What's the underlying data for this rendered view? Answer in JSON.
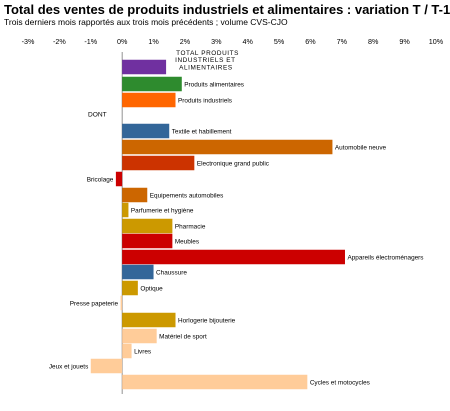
{
  "chart_data": {
    "type": "bar",
    "orientation": "horizontal",
    "title": "Total des ventes de produits industriels et alimentaires : variation T / T-1",
    "subtitle": "Trois derniers mois rapportés aux trois mois précédents ; volume CVS-CJO",
    "xlim": [
      -3,
      10
    ],
    "x_ticks": [
      "-3%",
      "-2%",
      "-1%",
      "0%",
      "1%",
      "2%",
      "3%",
      "4%",
      "5%",
      "6%",
      "7%",
      "8%",
      "9%",
      "10%"
    ],
    "section_label": "DONT",
    "grid": false,
    "categories": [
      {
        "label": "TOTAL PRODUITS INDUSTRIELS ET ALIMENTAIRES",
        "value": 1.4,
        "color": "#7030a0"
      },
      {
        "label": "Produits alimentaires",
        "value": 1.9,
        "color": "#2e8b2e"
      },
      {
        "label": "Produits industriels",
        "value": 1.7,
        "color": "#ff6600"
      },
      {
        "label": "Textile et habillement",
        "value": 1.5,
        "color": "#336699"
      },
      {
        "label": "Automobile neuve",
        "value": 6.7,
        "color": "#cc6600"
      },
      {
        "label": "Electronique grand public",
        "value": 2.3,
        "color": "#cc3300"
      },
      {
        "label": "Bricolage",
        "value": -0.2,
        "color": "#cc0000"
      },
      {
        "label": "Equipements automobiles",
        "value": 0.8,
        "color": "#cc6600"
      },
      {
        "label": "Parfumerie et hygiène",
        "value": 0.2,
        "color": "#cc9900"
      },
      {
        "label": "Pharmacie",
        "value": 1.6,
        "color": "#cc9900"
      },
      {
        "label": "Meubles",
        "value": 1.6,
        "color": "#cc0000"
      },
      {
        "label": "Appareils électroménagers",
        "value": 7.1,
        "color": "#cc0000"
      },
      {
        "label": "Chaussure",
        "value": 1.0,
        "color": "#336699"
      },
      {
        "label": "Optique",
        "value": 0.5,
        "color": "#cc9900"
      },
      {
        "label": "Presse papeterie",
        "value": -0.05,
        "color": "#ffcc99"
      },
      {
        "label": "Horlogerie bijouterie",
        "value": 1.7,
        "color": "#cc9900"
      },
      {
        "label": "Matériel de sport",
        "value": 1.1,
        "color": "#ffcc99"
      },
      {
        "label": "Livres",
        "value": 0.3,
        "color": "#ffcc99"
      },
      {
        "label": "Jeux et jouets",
        "value": -1.0,
        "color": "#ffcc99"
      },
      {
        "label": "Cycles et motocycles",
        "value": 5.9,
        "color": "#ffcc99"
      }
    ]
  }
}
